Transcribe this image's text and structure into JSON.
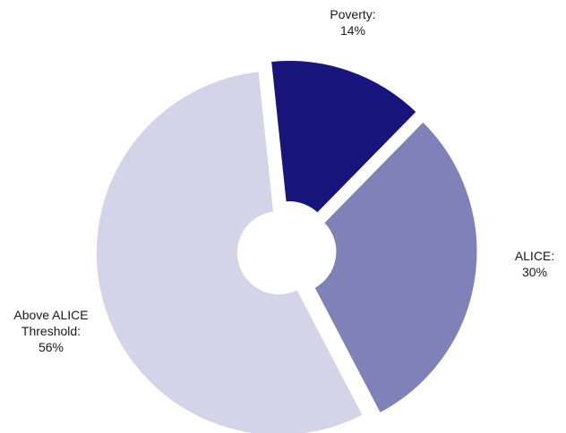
{
  "chart_data": {
    "type": "pie",
    "title": "",
    "legend": "none",
    "slices": [
      {
        "label": "Poverty:",
        "value_label": "14%",
        "value": 14,
        "color": "#17157c"
      },
      {
        "label": "ALICE:",
        "value_label": "30%",
        "value": 30,
        "color": "#7e82b8"
      },
      {
        "label": "Above ALICE Threshold:",
        "label_lines": [
          "Above ALICE",
          "Threshold:"
        ],
        "value_label": "56%",
        "value": 56,
        "color": "#d5d3e8"
      }
    ]
  }
}
